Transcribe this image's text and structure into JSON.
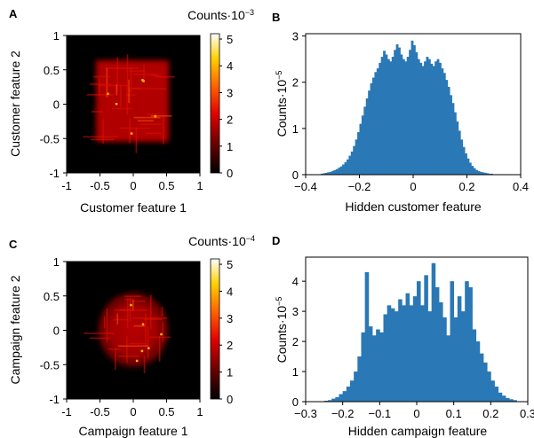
{
  "chart_data": [
    {
      "panel": "A",
      "type": "heatmap",
      "xlabel": "Customer feature 1",
      "ylabel": "Customer feature 2",
      "xlim": [
        -1,
        1
      ],
      "ylim": [
        -1,
        1
      ],
      "xticks": [
        "-1",
        "-0.5",
        "0",
        "0.5",
        "1"
      ],
      "yticks": [
        "1",
        "0.5",
        "0",
        "-0.5",
        "-1"
      ],
      "colorbar": {
        "title": "Counts·10",
        "title_exp": "−3",
        "ticks": [
          0,
          1,
          2,
          3,
          4,
          5
        ],
        "tick_labels": [
          "0",
          "1",
          "2",
          "3",
          "4",
          "5"
        ],
        "range": [
          0,
          5.2
        ],
        "colormap": "hot",
        "colors": [
          "#000000",
          "#700000",
          "#e00000",
          "#ff6000",
          "#ffd000",
          "#ffffff"
        ]
      },
      "density": {
        "shape": "square",
        "x_extent": [
          -0.5,
          0.5
        ],
        "y_extent": [
          -0.55,
          0.6
        ],
        "typical_value": 1.4
      }
    },
    {
      "panel": "B",
      "type": "bar",
      "xlabel": "Hidden customer feature",
      "ylabel": "Counts·10",
      "ylabel_exp": "−5",
      "xlim": [
        -0.5,
        0.5
      ],
      "ylim": [
        0,
        3.05
      ],
      "xticks": [
        "−0.4",
        "−0.2",
        "0",
        "0.2",
        "0.4"
      ],
      "yticks": [
        "0",
        "1",
        "2",
        "3"
      ],
      "color": "#2a78b5",
      "bin_start": -0.44,
      "bin_width": 0.01,
      "values": [
        0.01,
        0.02,
        0.03,
        0.04,
        0.05,
        0.06,
        0.08,
        0.1,
        0.12,
        0.15,
        0.18,
        0.22,
        0.27,
        0.33,
        0.41,
        0.5,
        0.62,
        0.76,
        0.92,
        1.1,
        1.28,
        1.47,
        1.65,
        1.82,
        1.98,
        2.1,
        2.22,
        2.3,
        2.42,
        2.55,
        2.68,
        2.6,
        2.5,
        2.45,
        2.55,
        2.7,
        2.82,
        2.75,
        2.6,
        2.5,
        2.45,
        2.55,
        2.7,
        2.9,
        2.8,
        2.65,
        2.5,
        2.42,
        2.35,
        2.45,
        2.55,
        2.5,
        2.4,
        2.35,
        2.45,
        2.5,
        2.42,
        2.3,
        2.2,
        2.05,
        1.9,
        1.72,
        1.55,
        1.35,
        1.15,
        0.95,
        0.76,
        0.6,
        0.46,
        0.35,
        0.26,
        0.19,
        0.14,
        0.1,
        0.08,
        0.06,
        0.05,
        0.04,
        0.03,
        0.02,
        0.02,
        0.01,
        0.01,
        0.01,
        0.01,
        0.01,
        0.01,
        0.01
      ]
    },
    {
      "panel": "C",
      "type": "heatmap",
      "xlabel": "Campaign feature 1",
      "ylabel": "Campaign feature 2",
      "xlim": [
        -1,
        1
      ],
      "ylim": [
        -1,
        1
      ],
      "xticks": [
        "-1",
        "-0.5",
        "0",
        "0.5",
        "1"
      ],
      "yticks": [
        "1",
        "0.5",
        "0",
        "-0.5",
        "-1"
      ],
      "colorbar": {
        "title": "Counts·10",
        "title_exp": "−4",
        "ticks": [
          0,
          1,
          2,
          3,
          4,
          5
        ],
        "tick_labels": [
          "0",
          "1",
          "2",
          "3",
          "4",
          "5"
        ],
        "range": [
          0,
          5.2
        ],
        "colormap": "hot",
        "colors": [
          "#000000",
          "#700000",
          "#e00000",
          "#ff6000",
          "#ffd000",
          "#ffffff"
        ]
      },
      "density": {
        "shape": "circle",
        "center": [
          0,
          0
        ],
        "radius": 0.55,
        "typical_value": 1.1
      }
    },
    {
      "panel": "D",
      "type": "bar",
      "xlabel": "Hidden campaign feature",
      "ylabel": "Counts·10",
      "ylabel_exp": "−5",
      "xlim": [
        -0.3,
        0.3
      ],
      "ylim": [
        0,
        4.8
      ],
      "xticks": [
        "−0.3",
        "−0.2",
        "−0.1",
        "0",
        "0.1",
        "0.2",
        "0.3"
      ],
      "yticks": [
        "0",
        "1",
        "2",
        "3",
        "4"
      ],
      "color": "#2a78b5",
      "bin_start": -0.25,
      "bin_width": 0.01,
      "values": [
        0.03,
        0.05,
        0.1,
        0.15,
        0.25,
        0.35,
        0.5,
        0.7,
        1.0,
        1.5,
        2.3,
        4.3,
        2.5,
        2.2,
        2.4,
        2.3,
        2.9,
        3.2,
        3.1,
        3.0,
        3.4,
        3.2,
        3.6,
        3.2,
        3.5,
        4.0,
        3.2,
        4.2,
        3.0,
        4.6,
        3.8,
        3.3,
        2.8,
        2.2,
        4.0,
        2.8,
        3.5,
        3.0,
        4.0,
        3.8,
        2.4,
        2.0,
        1.6,
        1.3,
        1.0,
        0.7,
        0.5,
        0.3,
        0.2,
        0.12,
        0.08,
        0.05
      ]
    }
  ],
  "panel_labels": [
    "A",
    "B",
    "C",
    "D"
  ]
}
